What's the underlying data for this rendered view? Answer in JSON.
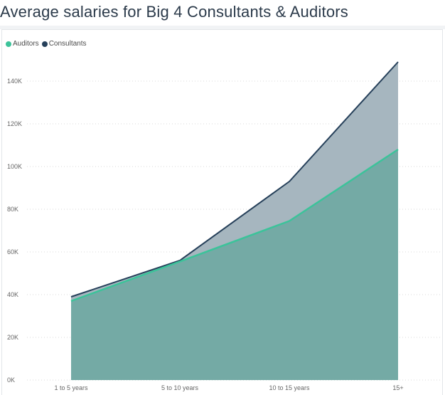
{
  "page": {
    "title": "Average salaries for Big 4 Consultants & Auditors"
  },
  "colors": {
    "auditors": "#3cc39a",
    "consultants": "#26405a",
    "auditors_fill": "#74aaa5",
    "consultants_fill": "#a6b6bf",
    "grid": "#d9d9d9"
  },
  "chart_data": {
    "type": "area",
    "title": "Average salaries for Big 4 Consultants & Auditors",
    "xlabel": "",
    "ylabel": "",
    "categories": [
      "1 to 5 years",
      "5 to 10 years",
      "10 to 15 years",
      "15+"
    ],
    "series": [
      {
        "name": "Auditors",
        "values": [
          37000,
          55500,
          74500,
          108000
        ]
      },
      {
        "name": "Consultants",
        "values": [
          39000,
          56000,
          93000,
          149000
        ]
      }
    ],
    "ylim": [
      0,
      150000
    ],
    "yticks": [
      0,
      20000,
      40000,
      60000,
      80000,
      100000,
      120000,
      140000
    ],
    "ytick_labels": [
      "0K",
      "20K",
      "40K",
      "60K",
      "80K",
      "100K",
      "120K",
      "140K"
    ],
    "legend": [
      "Auditors",
      "Consultants"
    ],
    "legend_position": "top-left",
    "grid": true
  }
}
